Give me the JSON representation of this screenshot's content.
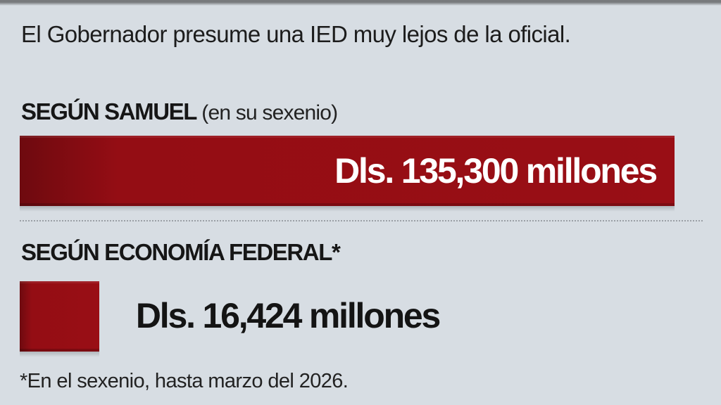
{
  "subtitle": "El Gobernador presume una IED muy lejos de la oficial.",
  "colors": {
    "background": "#d7dde3",
    "bar": "#990e15",
    "text": "#1b1b1b"
  },
  "chart_data": {
    "type": "bar",
    "orientation": "horizontal",
    "unit": "Dls. millones",
    "categories": [
      "SEGÚN SAMUEL",
      "SEGÚN ECONOMÍA FEDERAL*"
    ],
    "category_notes": [
      "(en su sexenio)",
      ""
    ],
    "values": [
      135300,
      16424
    ],
    "value_labels": [
      "Dls. 135,300 millones",
      "Dls. 16,424 millones"
    ],
    "xlim": [
      0,
      140000
    ],
    "grid": false,
    "legend": "none"
  },
  "footnote": "*En el sexenio, hasta marzo del 2026."
}
